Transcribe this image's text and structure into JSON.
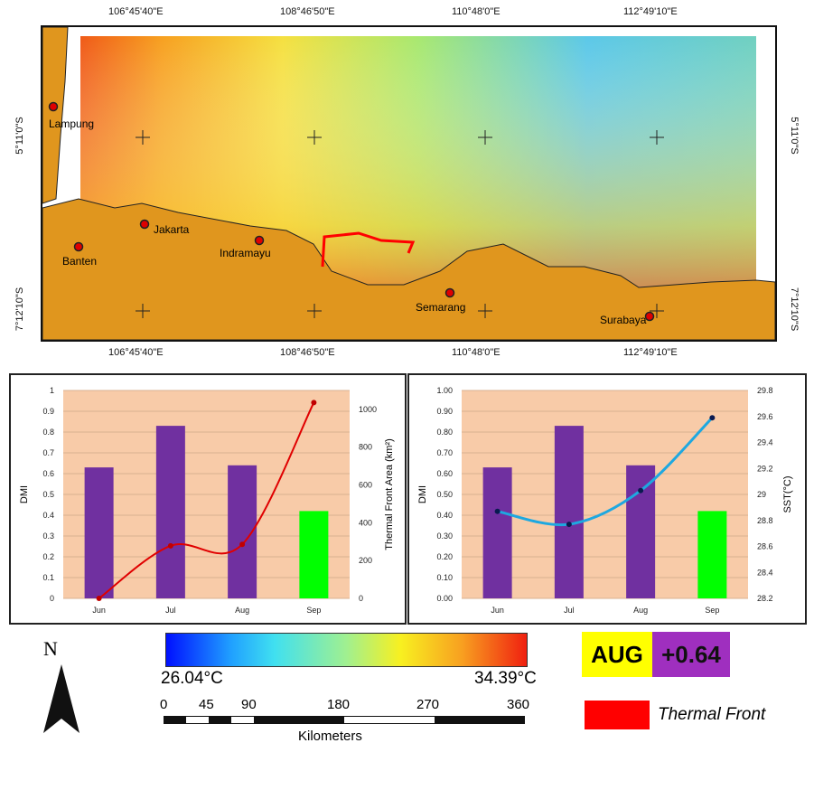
{
  "map": {
    "top_lon_labels": [
      "106°45'40\"E",
      "108°46'50\"E",
      "110°48'0\"E",
      "112°49'10\"E"
    ],
    "bottom_lon_labels": [
      "106°45'40\"E",
      "108°46'50\"E",
      "110°48'0\"E",
      "112°49'10\"E"
    ],
    "lat_labels": [
      "5°11'0\"S",
      "7°12'10\"S"
    ],
    "cities": [
      "Lampung",
      "Jakarta",
      "Banten",
      "Indramayu",
      "Semarang",
      "Surabaya"
    ],
    "colors": {
      "land": "#e0961e",
      "front": "#ff0000",
      "city": "#e00000"
    }
  },
  "legend": {
    "north": "N",
    "temp_min": "26.04°C",
    "temp_max": "34.39°C",
    "scale_ticks": [
      "0",
      "45",
      "90",
      "180",
      "270",
      "360"
    ],
    "scale_unit": "Kilometers",
    "month_badge": "AUG",
    "dmi_badge": "+0.64",
    "front_label": "Thermal Front"
  },
  "chart_data": [
    {
      "type": "bar",
      "categories": [
        "Jun",
        "Jul",
        "Aug",
        "Sep"
      ],
      "series": [
        {
          "name": "DMI",
          "kind": "bar",
          "values": [
            0.63,
            0.83,
            0.64,
            0.42
          ],
          "colors": [
            "#7030a0",
            "#7030a0",
            "#7030a0",
            "#00ff00"
          ]
        },
        {
          "name": "Thermal Front Area",
          "kind": "line",
          "axis": "right",
          "values": [
            0,
            278,
            286,
            1036
          ],
          "color": "#e00000"
        }
      ],
      "ylabel": "DMI",
      "y2label": "Thermal Front Area (km²)",
      "ylim": [
        0,
        1
      ],
      "y2lim": [
        0,
        1100
      ],
      "yticks": [
        "0",
        "0.1",
        "0.2",
        "0.3",
        "0.4",
        "0.5",
        "0.6",
        "0.7",
        "0.8",
        "0.9",
        "1"
      ],
      "y2ticks": [
        "0",
        "200",
        "400",
        "600",
        "800",
        "1000"
      ]
    },
    {
      "type": "bar",
      "categories": [
        "Jun",
        "Jul",
        "Aug",
        "Sep"
      ],
      "series": [
        {
          "name": "DMI",
          "kind": "bar",
          "values": [
            0.63,
            0.83,
            0.64,
            0.42
          ],
          "colors": [
            "#7030a0",
            "#7030a0",
            "#7030a0",
            "#00ff00"
          ]
        },
        {
          "name": "SST",
          "kind": "line",
          "axis": "right",
          "values": [
            28.87,
            28.77,
            29.03,
            29.59
          ],
          "color": "#1ea8e0"
        }
      ],
      "ylabel": "DMI",
      "y2label": "SST(°C)",
      "ylim": [
        0,
        1
      ],
      "y2lim": [
        28.2,
        29.8
      ],
      "yticks": [
        "0.00",
        "0.10",
        "0.20",
        "0.30",
        "0.40",
        "0.50",
        "0.60",
        "0.70",
        "0.80",
        "0.90",
        "1.00"
      ],
      "y2ticks": [
        "28.2",
        "28.4",
        "28.6",
        "28.8",
        "29",
        "29.2",
        "29.4",
        "29.6",
        "29.8"
      ]
    }
  ]
}
